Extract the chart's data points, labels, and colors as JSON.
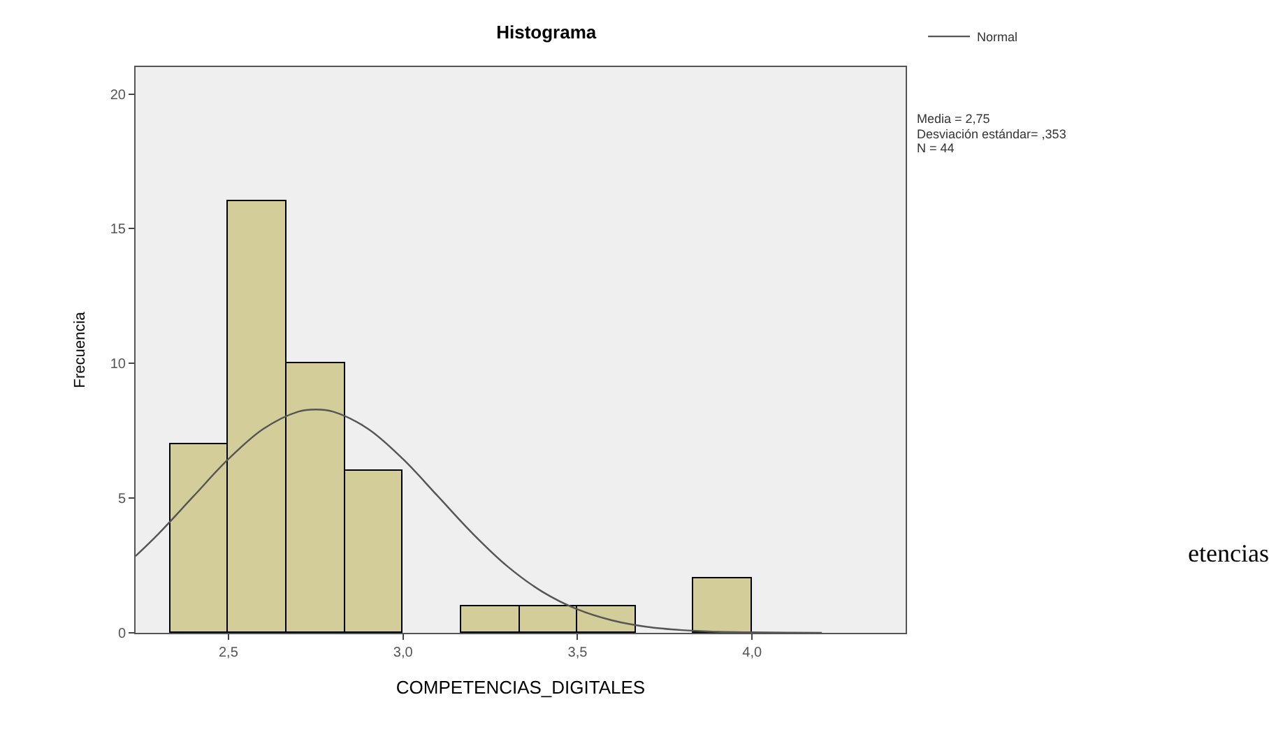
{
  "chart_data": {
    "type": "histogram",
    "title": "Histograma",
    "xlabel": "COMPETENCIAS_DIGITALES",
    "ylabel": "Frecuencia",
    "bins": [
      2.333,
      2.5,
      2.667,
      2.833,
      3.0,
      3.167,
      3.333,
      3.5,
      3.667,
      3.833,
      4.0
    ],
    "values": [
      7,
      16,
      10,
      6,
      0,
      1,
      1,
      1,
      0,
      2
    ],
    "color": "#d3ce99",
    "series": [
      {
        "name": "Normal",
        "type": "line",
        "color": "#555555",
        "x": [
          2.234,
          2.3,
          2.4,
          2.5,
          2.6,
          2.7,
          2.75,
          2.8,
          2.9,
          3.0,
          3.1,
          3.2,
          3.3,
          3.4,
          3.5,
          3.6,
          3.7,
          3.8,
          3.9,
          4.0,
          4.1,
          4.2
        ],
        "values": [
          2.85,
          3.68,
          5.07,
          6.45,
          7.57,
          8.21,
          8.29,
          8.21,
          7.57,
          6.45,
          5.07,
          3.68,
          2.46,
          1.52,
          0.87,
          0.46,
          0.22,
          0.1,
          0.04,
          0.02,
          0.01,
          0.0
        ]
      }
    ],
    "xlim": [
      2.234,
      4.44
    ],
    "ylim": [
      0,
      21
    ],
    "xticks": [
      {
        "value": 2.5,
        "label": "2,5"
      },
      {
        "value": 3.0,
        "label": "3,0"
      },
      {
        "value": 3.5,
        "label": "3,5"
      },
      {
        "value": 4.0,
        "label": "4,0"
      }
    ],
    "yticks": [
      0,
      5,
      10,
      15,
      20
    ],
    "grid": false,
    "legend": "top right",
    "marker": "none",
    "line_style": "solid",
    "annotations": [
      "Media = 2,75",
      "Desviación estándar= ,353",
      "N = 44",
      "etencias"
    ]
  }
}
